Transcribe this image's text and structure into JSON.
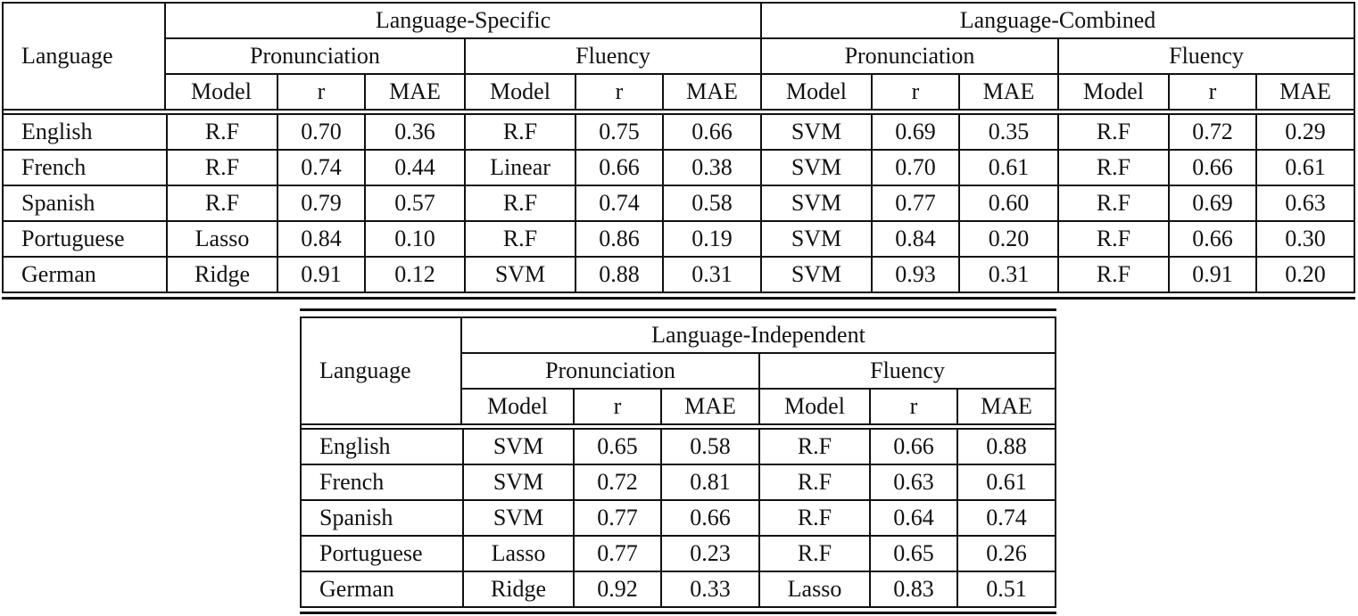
{
  "table1": {
    "corner": "Language",
    "groups": [
      "Language-Specific",
      "Language-Combined"
    ],
    "subgroups": [
      "Pronunciation",
      "Fluency",
      "Pronunciation",
      "Fluency"
    ],
    "columns": [
      "Model",
      "r",
      "MAE",
      "Model",
      "r",
      "MAE",
      "Model",
      "r",
      "MAE",
      "Model",
      "r",
      "MAE"
    ],
    "rows": [
      {
        "language": "English",
        "cells": [
          "R.F",
          "0.70",
          "0.36",
          "R.F",
          "0.75",
          "0.66",
          "SVM",
          "0.69",
          "0.35",
          "R.F",
          "0.72",
          "0.29"
        ]
      },
      {
        "language": "French",
        "cells": [
          "R.F",
          "0.74",
          "0.44",
          "Linear",
          "0.66",
          "0.38",
          "SVM",
          "0.70",
          "0.61",
          "R.F",
          "0.66",
          "0.61"
        ]
      },
      {
        "language": "Spanish",
        "cells": [
          "R.F",
          "0.79",
          "0.57",
          "R.F",
          "0.74",
          "0.58",
          "SVM",
          "0.77",
          "0.60",
          "R.F",
          "0.69",
          "0.63"
        ]
      },
      {
        "language": "Portuguese",
        "cells": [
          "Lasso",
          "0.84",
          "0.10",
          "R.F",
          "0.86",
          "0.19",
          "SVM",
          "0.84",
          "0.20",
          "R.F",
          "0.66",
          "0.30"
        ]
      },
      {
        "language": "German",
        "cells": [
          "Ridge",
          "0.91",
          "0.12",
          "SVM",
          "0.88",
          "0.31",
          "SVM",
          "0.93",
          "0.31",
          "R.F",
          "0.91",
          "0.20"
        ]
      }
    ]
  },
  "table2": {
    "corner": "Language",
    "group": "Language-Independent",
    "subgroups": [
      "Pronunciation",
      "Fluency"
    ],
    "columns": [
      "Model",
      "r",
      "MAE",
      "Model",
      "r",
      "MAE"
    ],
    "rows": [
      {
        "language": "English",
        "cells": [
          "SVM",
          "0.65",
          "0.58",
          "R.F",
          "0.66",
          "0.88"
        ]
      },
      {
        "language": "French",
        "cells": [
          "SVM",
          "0.72",
          "0.81",
          "R.F",
          "0.63",
          "0.61"
        ]
      },
      {
        "language": "Spanish",
        "cells": [
          "SVM",
          "0.77",
          "0.66",
          "R.F",
          "0.64",
          "0.74"
        ]
      },
      {
        "language": "Portuguese",
        "cells": [
          "Lasso",
          "0.77",
          "0.23",
          "R.F",
          "0.65",
          "0.26"
        ]
      },
      {
        "language": "German",
        "cells": [
          "Ridge",
          "0.92",
          "0.33",
          "Lasso",
          "0.83",
          "0.51"
        ]
      }
    ]
  }
}
